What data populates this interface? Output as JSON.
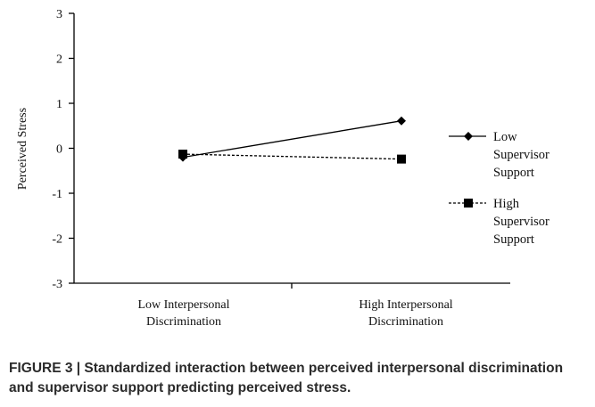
{
  "chart_data": {
    "type": "line",
    "title": "",
    "xlabel": "",
    "ylabel": "Perceived Stress",
    "ylim": [
      -3,
      3
    ],
    "yticks": [
      "3",
      "2",
      "1",
      "0",
      "-1",
      "-2",
      "-3"
    ],
    "ytick_values": [
      3,
      2,
      1,
      0,
      -1,
      -2,
      -3
    ],
    "categories": [
      [
        "Low Interpersonal",
        "Discrimination"
      ],
      [
        "High Interpersonal",
        "Discrimination"
      ]
    ],
    "grid": false,
    "legend_position": "right",
    "series": [
      {
        "name": [
          "Low",
          "Supervisor",
          "Support"
        ],
        "values": [
          -0.2,
          0.61
        ],
        "marker": "diamond",
        "line": "solid"
      },
      {
        "name": [
          "High",
          "Supervisor",
          "Support"
        ],
        "values": [
          -0.13,
          -0.24
        ],
        "marker": "square",
        "line": "dashed"
      }
    ]
  },
  "caption": "FIGURE 3 | Standardized interaction between perceived interpersonal discrimination and supervisor support predicting perceived stress."
}
